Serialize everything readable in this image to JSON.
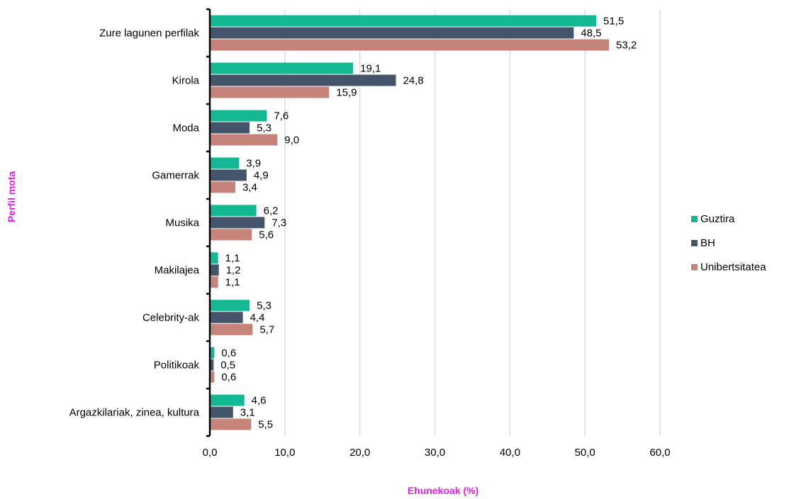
{
  "chart_data": {
    "type": "bar",
    "orientation": "horizontal",
    "title": "",
    "xlabel": "Ehunekoak (%)",
    "ylabel": "Perfil mota",
    "xlim": [
      0,
      60
    ],
    "x_ticks": [
      "0,0",
      "10,0",
      "20,0",
      "30,0",
      "40,0",
      "50,0",
      "60,0"
    ],
    "grid": "vertical",
    "legend_position": "right",
    "categories": [
      "Zure lagunen perfilak",
      "Kirola",
      "Moda",
      "Gamerrak",
      "Musika",
      "Makilajea",
      "Celebrity-ak",
      "Politikoak",
      "Argazkilariak, zinea, kultura"
    ],
    "series": [
      {
        "name": "Guztira",
        "color": "#14b892",
        "values": [
          51.5,
          19.1,
          7.6,
          3.9,
          6.2,
          1.1,
          5.3,
          0.6,
          4.6
        ],
        "labels": [
          "51,5",
          "19,1",
          "7,6",
          "3,9",
          "6,2",
          "1,1",
          "5,3",
          "0,6",
          "4,6"
        ]
      },
      {
        "name": "BH",
        "color": "#44546a",
        "values": [
          48.5,
          24.8,
          5.3,
          4.9,
          7.3,
          1.2,
          4.4,
          0.5,
          3.1
        ],
        "labels": [
          "48,5",
          "24,8",
          "5,3",
          "4,9",
          "7,3",
          "1,2",
          "4,4",
          "0,5",
          "3,1"
        ]
      },
      {
        "name": "Unibertsitatea",
        "color": "#c5837a",
        "values": [
          53.2,
          15.9,
          9.0,
          3.4,
          5.6,
          1.1,
          5.7,
          0.6,
          5.5
        ],
        "labels": [
          "53,2",
          "15,9",
          "9,0",
          "3,4",
          "5,6",
          "1,1",
          "5,7",
          "0,6",
          "5,5"
        ]
      }
    ],
    "axis_title_color": "#e020e0"
  }
}
